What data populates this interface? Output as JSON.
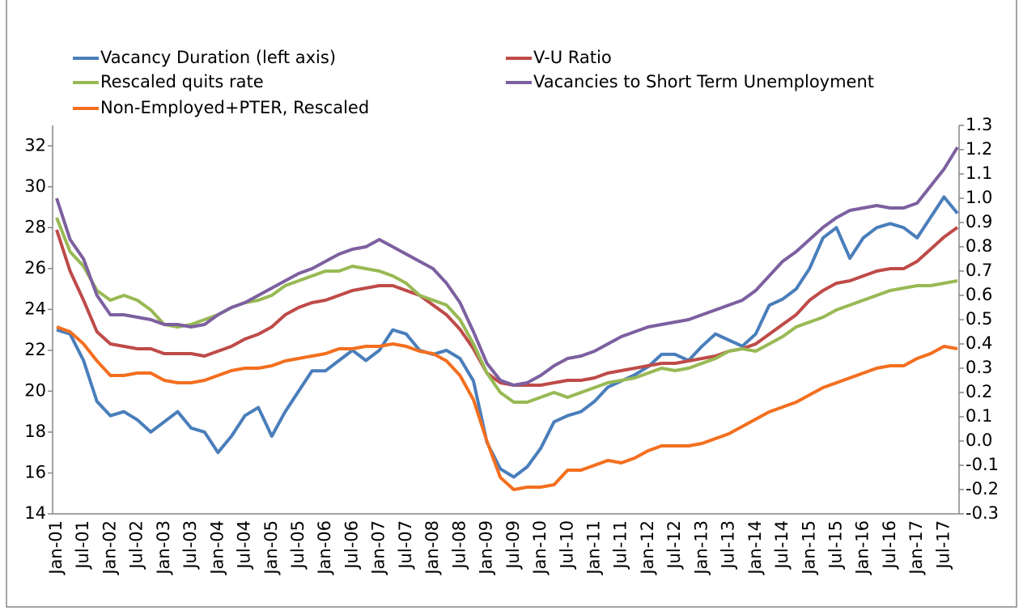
{
  "chart_data": {
    "type": "line",
    "categories": [
      "Jan-01",
      null,
      "Jul-01",
      null,
      "Jan-02",
      null,
      "Jul-02",
      null,
      "Jan-03",
      null,
      "Jul-03",
      null,
      "Jan-04",
      null,
      "Jul-04",
      null,
      "Jan-05",
      null,
      "Jul-05",
      null,
      "Jan-06",
      null,
      "Jul-06",
      null,
      "Jan-07",
      null,
      "Jul-07",
      null,
      "Jan-08",
      null,
      "Jul-08",
      null,
      "Jan-09",
      null,
      "Jul-09",
      null,
      "Jan-10",
      null,
      "Jul-10",
      null,
      "Jan-11",
      null,
      "Jul-11",
      null,
      "Jan-12",
      null,
      "Jul-12",
      null,
      "Jan-13",
      null,
      "Jul-13",
      null,
      "Jan-14",
      null,
      "Jul-14",
      null,
      "Jan-15",
      null,
      "Jul-15",
      null,
      "Jan-16",
      null,
      "Jul-16",
      null,
      "Jan-17",
      null,
      "Jul-17",
      null
    ],
    "ylim": [
      14,
      33
    ],
    "yticks": [
      14,
      16,
      18,
      20,
      22,
      24,
      26,
      28,
      30,
      32
    ],
    "y2lim": [
      -0.3,
      1.3
    ],
    "y2ticks": [
      -0.3,
      -0.2,
      -0.1,
      {
        "value": 0,
        "label": "0.0"
      },
      0.1,
      0.2,
      0.3,
      0.4,
      0.5,
      0.6,
      0.7,
      0.8,
      0.9,
      {
        "value": 1,
        "label": "1.0"
      },
      1.1,
      1.2,
      1.3
    ],
    "series": [
      {
        "name": "Vacancy Duration (left axis)",
        "color": "#4a7ebb",
        "values": [
          23.0,
          22.8,
          21.5,
          19.5,
          18.8,
          19.0,
          18.6,
          18.0,
          18.5,
          19.0,
          18.2,
          18.0,
          17.0,
          17.8,
          18.8,
          19.2,
          17.8,
          19.0,
          20.0,
          21.0,
          21.0,
          21.5,
          22.0,
          21.5,
          22.0,
          23.0,
          22.8,
          22.0,
          21.8,
          22.0,
          21.6,
          20.5,
          17.5,
          16.2,
          15.8,
          16.3,
          17.2,
          18.5,
          18.8,
          19.0,
          19.5,
          20.2,
          20.5,
          20.8,
          21.2,
          21.8,
          21.8,
          21.5,
          22.2,
          22.8,
          22.5,
          22.2,
          22.8,
          24.2,
          24.5,
          25.0,
          26.0,
          27.5,
          28.0,
          26.5,
          27.5,
          28.0,
          28.2,
          28.0,
          27.5,
          28.5,
          29.5,
          28.7
        ]
      },
      {
        "name": "V-U Ratio",
        "color": "#be4b48",
        "axis": "y2",
        "values": [
          0.87,
          0.7,
          0.58,
          0.45,
          0.4,
          0.39,
          0.38,
          0.38,
          0.36,
          0.36,
          0.36,
          0.35,
          0.37,
          0.39,
          0.42,
          0.44,
          0.47,
          0.52,
          0.55,
          0.57,
          0.58,
          0.6,
          0.62,
          0.63,
          0.64,
          0.64,
          0.62,
          0.6,
          0.56,
          0.52,
          0.46,
          0.38,
          0.28,
          0.24,
          0.23,
          0.23,
          0.23,
          0.24,
          0.25,
          0.25,
          0.26,
          0.28,
          0.29,
          0.3,
          0.31,
          0.32,
          0.32,
          0.33,
          0.34,
          0.35,
          0.37,
          0.38,
          0.4,
          0.44,
          0.48,
          0.52,
          0.58,
          0.62,
          0.65,
          0.66,
          0.68,
          0.7,
          0.71,
          0.71,
          0.74,
          0.79,
          0.84,
          0.88
        ]
      },
      {
        "name": "Rescaled quits rate",
        "color": "#98b954",
        "axis": "y2",
        "values": [
          0.92,
          0.78,
          0.72,
          0.62,
          0.58,
          0.6,
          0.58,
          0.54,
          0.48,
          0.47,
          0.48,
          0.5,
          0.52,
          0.55,
          0.57,
          0.58,
          0.6,
          0.64,
          0.66,
          0.68,
          0.7,
          0.7,
          0.72,
          0.71,
          0.7,
          0.68,
          0.65,
          0.6,
          0.58,
          0.56,
          0.5,
          0.4,
          0.28,
          0.2,
          0.16,
          0.16,
          0.18,
          0.2,
          0.18,
          0.2,
          0.22,
          0.24,
          0.25,
          0.26,
          0.28,
          0.3,
          0.29,
          0.3,
          0.32,
          0.34,
          0.37,
          0.38,
          0.37,
          0.4,
          0.43,
          0.47,
          0.49,
          0.51,
          0.54,
          0.56,
          0.58,
          0.6,
          0.62,
          0.63,
          0.64,
          0.64,
          0.65,
          0.66
        ]
      },
      {
        "name": "Vacancies to Short Term Unemployment",
        "color": "#7d60a0",
        "axis": "y2",
        "values": [
          1.0,
          0.83,
          0.75,
          0.6,
          0.52,
          0.52,
          0.51,
          0.5,
          0.48,
          0.48,
          0.47,
          0.48,
          0.52,
          0.55,
          0.57,
          0.6,
          0.63,
          0.66,
          0.69,
          0.71,
          0.74,
          0.77,
          0.79,
          0.8,
          0.83,
          0.8,
          0.77,
          0.74,
          0.71,
          0.65,
          0.57,
          0.45,
          0.32,
          0.25,
          0.23,
          0.24,
          0.27,
          0.31,
          0.34,
          0.35,
          0.37,
          0.4,
          0.43,
          0.45,
          0.47,
          0.48,
          0.49,
          0.5,
          0.52,
          0.54,
          0.56,
          0.58,
          0.62,
          0.68,
          0.74,
          0.78,
          0.83,
          0.88,
          0.92,
          0.95,
          0.96,
          0.97,
          0.96,
          0.96,
          0.98,
          1.05,
          1.12,
          1.21
        ]
      },
      {
        "name": "Non-Employed+PTER, Rescaled",
        "color": "#f36f1f",
        "axis": "y2",
        "values": [
          0.47,
          0.45,
          0.4,
          0.33,
          0.27,
          0.27,
          0.28,
          0.28,
          0.25,
          0.24,
          0.24,
          0.25,
          0.27,
          0.29,
          0.3,
          0.3,
          0.31,
          0.33,
          0.34,
          0.35,
          0.36,
          0.38,
          0.38,
          0.39,
          0.39,
          0.4,
          0.39,
          0.37,
          0.36,
          0.33,
          0.27,
          0.17,
          0.0,
          -0.15,
          -0.2,
          -0.19,
          -0.19,
          -0.18,
          -0.12,
          -0.12,
          -0.1,
          -0.08,
          -0.09,
          -0.07,
          -0.04,
          -0.02,
          -0.02,
          -0.02,
          -0.01,
          0.01,
          0.03,
          0.06,
          0.09,
          0.12,
          0.14,
          0.16,
          0.19,
          0.22,
          0.24,
          0.26,
          0.28,
          0.3,
          0.31,
          0.31,
          0.34,
          0.36,
          0.39,
          0.38
        ]
      }
    ]
  }
}
